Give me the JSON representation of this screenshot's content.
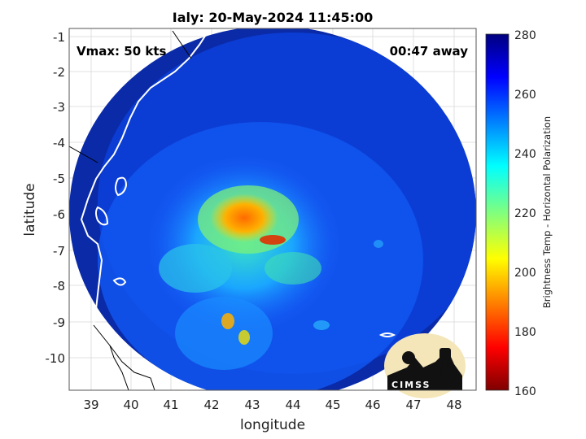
{
  "title": "Ialy: 20-May-2024 11:45:00",
  "annotations": {
    "vmax": "Vmax: 50 kts",
    "time_away": "00:47 away"
  },
  "axes": {
    "xlabel": "longitude",
    "ylabel": "latitude",
    "xlim": [
      38.5,
      48.5
    ],
    "ylim": [
      -10.9,
      -0.9
    ],
    "xticks": [
      "39",
      "40",
      "41",
      "42",
      "43",
      "44",
      "45",
      "46",
      "47",
      "48"
    ],
    "yticks": [
      "-1",
      "-2",
      "-3",
      "-4",
      "-5",
      "-6",
      "-7",
      "-8",
      "-9",
      "-10"
    ],
    "grid": true
  },
  "colorbar": {
    "label": "Brightness Temp - Horizontal Polarization",
    "range": [
      160,
      280
    ],
    "ticks": [
      "280",
      "260",
      "240",
      "220",
      "200",
      "180",
      "160"
    ],
    "colormap": "jet"
  },
  "map": {
    "swath_center": {
      "lon": 43.3,
      "lat": -6.5
    },
    "storm_center": {
      "lon": 43.0,
      "lat": -6.3
    },
    "background_color": "#0a2aa8"
  },
  "logo": {
    "text": "CIMSS"
  }
}
